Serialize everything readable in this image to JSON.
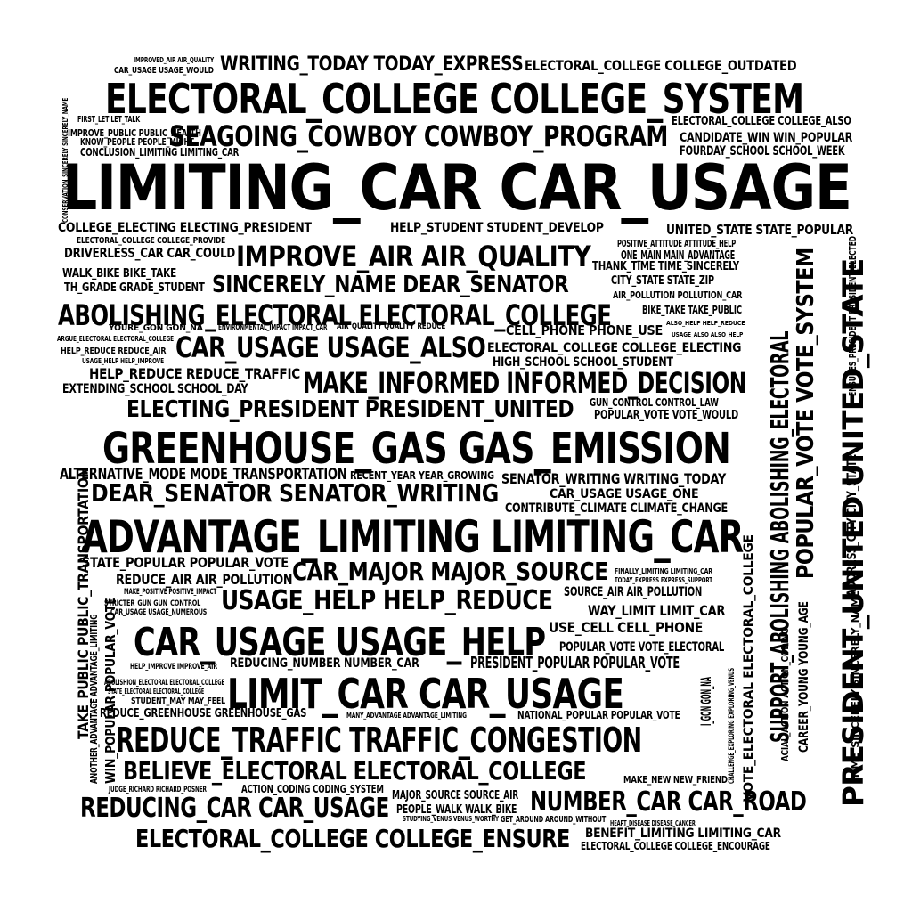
{
  "cloud": {
    "text_color": "#000000",
    "background": "#ffffff",
    "words": [
      {
        "text": "LIMITING_CAR CAR_USAGE",
        "orientation": "horizontal"
      },
      {
        "text": "ELECTORAL_COLLEGE COLLEGE_SYSTEM",
        "orientation": "horizontal"
      },
      {
        "text": "GREENHOUSE_GAS GAS_EMISSION",
        "orientation": "horizontal"
      },
      {
        "text": "ADVANTAGE_LIMITING LIMITING_CAR",
        "orientation": "horizontal"
      },
      {
        "text": "LIMIT_CAR CAR_USAGE",
        "orientation": "horizontal"
      },
      {
        "text": "CAR_USAGE USAGE_HELP",
        "orientation": "horizontal"
      },
      {
        "text": "REDUCE_TRAFFIC TRAFFIC_CONGESTION",
        "orientation": "horizontal"
      },
      {
        "text": "ABOLISHING_ELECTORAL ELECTORAL_COLLEGE",
        "orientation": "horizontal"
      },
      {
        "text": "SEAGOING_COWBOY COWBOY_PROGRAM",
        "orientation": "horizontal"
      },
      {
        "text": "IMPROVE_AIR AIR_QUALITY",
        "orientation": "horizontal"
      },
      {
        "text": "MAKE_INFORMED INFORMED_DECISION",
        "orientation": "horizontal"
      },
      {
        "text": "CAR_USAGE USAGE_ALSO",
        "orientation": "horizontal"
      },
      {
        "text": "BELIEVE_ELECTORAL ELECTORAL_COLLEGE",
        "orientation": "horizontal"
      },
      {
        "text": "REDUCING_CAR CAR_USAGE",
        "orientation": "horizontal"
      },
      {
        "text": "ELECTORAL_COLLEGE COLLEGE_ENSURE",
        "orientation": "horizontal"
      },
      {
        "text": "USAGE_HELP HELP_REDUCE",
        "orientation": "horizontal"
      },
      {
        "text": "CAR_MAJOR MAJOR_SOURCE",
        "orientation": "horizontal"
      },
      {
        "text": "NUMBER_CAR CAR_ROAD",
        "orientation": "horizontal"
      },
      {
        "text": "DEAR_SENATOR SENATOR_WRITING",
        "orientation": "horizontal"
      },
      {
        "text": "SINCERELY_NAME DEAR_SENATOR",
        "orientation": "horizontal"
      },
      {
        "text": "ELECTING_PRESIDENT PRESIDENT_UNITED",
        "orientation": "horizontal"
      },
      {
        "text": "WRITING_TODAY TODAY_EXPRESS",
        "orientation": "horizontal"
      },
      {
        "text": "ALTERNATIVE_MODE MODE_TRANSPORTATION",
        "orientation": "horizontal"
      },
      {
        "text": "STATE_POPULAR POPULAR_VOTE",
        "orientation": "horizontal"
      },
      {
        "text": "HELP_REDUCE REDUCE_TRAFFIC",
        "orientation": "horizontal"
      },
      {
        "text": "REDUCE_AIR AIR_POLLUTION",
        "orientation": "horizontal"
      },
      {
        "text": "PRESIDENT_POPULAR POPULAR_VOTE",
        "orientation": "horizontal"
      },
      {
        "text": "SENATOR_WRITING WRITING_TODAY",
        "orientation": "horizontal"
      },
      {
        "text": "ELECTORAL_COLLEGE COLLEGE_OUTDATED",
        "orientation": "horizontal"
      },
      {
        "text": "CANDIDATE_WIN WIN_POPULAR",
        "orientation": "horizontal"
      },
      {
        "text": "FOURDAY_SCHOOL SCHOOL_WEEK",
        "orientation": "horizontal"
      },
      {
        "text": "COLLEGE_ELECTING ELECTING_PRESIDENT",
        "orientation": "horizontal"
      },
      {
        "text": "HELP_STUDENT STUDENT_DEVELOP",
        "orientation": "horizontal"
      },
      {
        "text": "UNITED_STATE STATE_POPULAR",
        "orientation": "horizontal"
      },
      {
        "text": "DRIVERLESS_CAR CAR_COULD",
        "orientation": "horizontal"
      },
      {
        "text": "WALK_BIKE BIKE_TAKE",
        "orientation": "horizontal"
      },
      {
        "text": "TH_GRADE GRADE_STUDENT",
        "orientation": "horizontal"
      },
      {
        "text": "ONE_MAIN MAIN_ADVANTAGE",
        "orientation": "horizontal"
      },
      {
        "text": "THANK_TIME TIME_SINCERELY",
        "orientation": "horizontal"
      },
      {
        "text": "CITY_STATE STATE_ZIP",
        "orientation": "horizontal"
      },
      {
        "text": "BIKE_TAKE TAKE_PUBLIC",
        "orientation": "horizontal"
      },
      {
        "text": "CELL_PHONE PHONE_USE",
        "orientation": "horizontal"
      },
      {
        "text": "ELECTORAL_COLLEGE COLLEGE_ELECTING",
        "orientation": "horizontal"
      },
      {
        "text": "HIGH_SCHOOL SCHOOL_STUDENT",
        "orientation": "horizontal"
      },
      {
        "text": "EXTENDING_SCHOOL SCHOOL_DAY",
        "orientation": "horizontal"
      },
      {
        "text": "GUN_CONTROL CONTROL_LAW",
        "orientation": "horizontal"
      },
      {
        "text": "POPULAR_VOTE VOTE_WOULD",
        "orientation": "horizontal"
      },
      {
        "text": "CAR_USAGE USAGE_ONE",
        "orientation": "horizontal"
      },
      {
        "text": "CONTRIBUTE_CLIMATE CLIMATE_CHANGE",
        "orientation": "horizontal"
      },
      {
        "text": "SOURCE_AIR AIR_POLLUTION",
        "orientation": "horizontal"
      },
      {
        "text": "WAY_LIMIT LIMIT_CAR",
        "orientation": "horizontal"
      },
      {
        "text": "USE_CELL CELL_PHONE",
        "orientation": "horizontal"
      },
      {
        "text": "POPULAR_VOTE VOTE_ELECTORAL",
        "orientation": "horizontal"
      },
      {
        "text": "REDUCING_NUMBER NUMBER_CAR",
        "orientation": "horizontal"
      },
      {
        "text": "REDUCE_GREENHOUSE GREENHOUSE_GAS",
        "orientation": "horizontal"
      },
      {
        "text": "NATIONAL_POPULAR POPULAR_VOTE",
        "orientation": "horizontal"
      },
      {
        "text": "ACTION_CODING CODING_SYSTEM",
        "orientation": "horizontal"
      },
      {
        "text": "MAJOR_SOURCE SOURCE_AIR",
        "orientation": "horizontal"
      },
      {
        "text": "PEOPLE_WALK WALK_BIKE",
        "orientation": "horizontal"
      },
      {
        "text": "BENEFIT_LIMITING LIMITING_CAR",
        "orientation": "horizontal"
      },
      {
        "text": "ELECTORAL_COLLEGE COLLEGE_ENCOURAGE",
        "orientation": "horizontal"
      },
      {
        "text": "MAKE_NEW NEW_FRIEND",
        "orientation": "horizontal"
      },
      {
        "text": "CONCLUSION_LIMITING LIMITING_CAR",
        "orientation": "horizontal"
      },
      {
        "text": "IMPROVE_PUBLIC PUBLIC_HEALTH",
        "orientation": "horizontal"
      },
      {
        "text": "KNOW_PEOPLE PEOPLE_MIGHT",
        "orientation": "horizontal"
      },
      {
        "text": "FIRST_LET LET_TALK",
        "orientation": "horizontal"
      },
      {
        "text": "CAR_USAGE USAGE_WOULD",
        "orientation": "horizontal"
      },
      {
        "text": "IMPROVED_AIR AIR_QUALITY",
        "orientation": "horizontal"
      },
      {
        "text": "ELECTORAL_COLLEGE COLLEGE_ALSO",
        "orientation": "horizontal"
      },
      {
        "text": "ELECTORAL_COLLEGE COLLEGE_PROVIDE",
        "orientation": "horizontal"
      },
      {
        "text": "POSITIVE_ATTITUDE ATTITUDE_HELP",
        "orientation": "horizontal"
      },
      {
        "text": "AIR_POLLUTION POLLUTION_CAR",
        "orientation": "horizontal"
      },
      {
        "text": "YOURE_GON GON_NA",
        "orientation": "horizontal"
      },
      {
        "text": "HELP_REDUCE REDUCE_AIR",
        "orientation": "horizontal"
      },
      {
        "text": "ARGUE_ELECTORAL ELECTORAL_COLLEGE",
        "orientation": "horizontal"
      },
      {
        "text": "USAGE_HELP HELP_IMPROVE",
        "orientation": "horizontal"
      },
      {
        "text": "RECENT_YEAR YEAR_GROWING",
        "orientation": "horizontal"
      },
      {
        "text": "MAKE_POSITIVE POSITIVE_IMPACT",
        "orientation": "horizontal"
      },
      {
        "text": "STRICTER_GUN GUN_CONTROL",
        "orientation": "horizontal"
      },
      {
        "text": "CAR_USAGE USAGE_NUMEROUS",
        "orientation": "horizontal"
      },
      {
        "text": "FINALLY_LIMITING LIMITING_CAR",
        "orientation": "horizontal"
      },
      {
        "text": "TODAY_EXPRESS EXPRESS_SUPPORT",
        "orientation": "horizontal"
      },
      {
        "text": "HELP_IMPROVE IMPROVE_AIR",
        "orientation": "horizontal"
      },
      {
        "text": "ABOLISHION_ELECTORAL ELECTORAL_COLLEGE",
        "orientation": "horizontal"
      },
      {
        "text": "STATE_ELECTORAL ELECTORAL_COLLEGE",
        "orientation": "horizontal"
      },
      {
        "text": "STUDENT_MAY MAY_FEEL",
        "orientation": "horizontal"
      },
      {
        "text": "MANY_ADVANTAGE ADVANTAGE_LIMITING",
        "orientation": "horizontal"
      },
      {
        "text": "JUDGE_RICHARD RICHARD_POSNER",
        "orientation": "horizontal"
      },
      {
        "text": "STUDYING_VENUS VENUS_WORTHY",
        "orientation": "horizontal"
      },
      {
        "text": "GET_AROUND AROUND_WITHOUT",
        "orientation": "horizontal"
      },
      {
        "text": "HEART_DISEASE DISEASE_CANCER",
        "orientation": "horizontal"
      },
      {
        "text": "AIR_QUALITY QUALITY_REDUCE",
        "orientation": "horizontal"
      },
      {
        "text": "ENVIRONMENTAL_IMPACT IMPACT_CAR",
        "orientation": "horizontal"
      },
      {
        "text": "ALSO_HELP HELP_REDUCE",
        "orientation": "horizontal"
      },
      {
        "text": "USAGE_ALSO ALSO_HELP",
        "orientation": "horizontal"
      },
      {
        "text": "PRESIDENT_UNITED UNITED_STATE",
        "orientation": "vertical"
      },
      {
        "text": "SUPPORT_ABOLISHING ABOLISHING_ELECTORAL",
        "orientation": "vertical"
      },
      {
        "text": "POPULAR_VOTE VOTE_SYSTEM",
        "orientation": "vertical"
      },
      {
        "text": "TAKE_PUBLIC PUBLIC_TRANSPORTATION",
        "orientation": "vertical"
      },
      {
        "text": "WIN_POPULAR POPULAR_VOTE",
        "orientation": "vertical"
      },
      {
        "text": "VOTE_ELECTORAL ELECTORAL_COLLEGE",
        "orientation": "vertical"
      },
      {
        "text": "CAREER_YOUNG YOUNG_AGE",
        "orientation": "vertical"
      },
      {
        "text": "ADDRESS_CITY CITY_STATE",
        "orientation": "vertical"
      },
      {
        "text": "TIME_SINCERELY SINCERELY_NAME",
        "orientation": "vertical"
      },
      {
        "text": "ENSURES_PRESIDENT PRESIDENT_ELECTED",
        "orientation": "vertical"
      },
      {
        "text": "ANOTHER_ADVANTAGE ADVANTAGE_LIMITING",
        "orientation": "vertical"
      },
      {
        "text": "ACIAL_ACTION ACTION_CODING",
        "orientation": "vertical"
      },
      {
        "text": "I_GON GON_NA",
        "orientation": "vertical"
      },
      {
        "text": "CHALLENGE_EXPLORING EXPLORING_VENUS",
        "orientation": "vertical"
      },
      {
        "text": "CONSERVATION_SINCERELY SINCERELY_NAME",
        "orientation": "vertical"
      }
    ]
  }
}
